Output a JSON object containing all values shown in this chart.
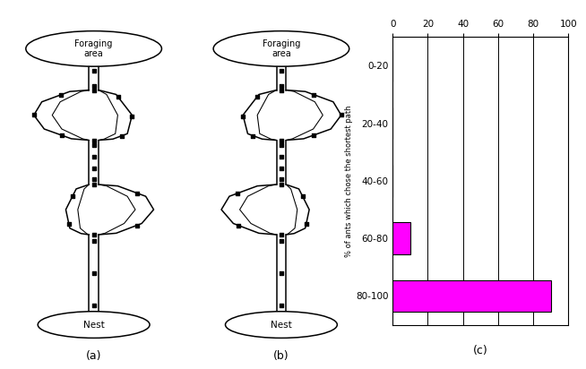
{
  "bar_categories": [
    "0-20",
    "20-40",
    "40-60",
    "60-80",
    "80-100"
  ],
  "bar_values": [
    0,
    0,
    0,
    10,
    90
  ],
  "bar_color": "#FF00FF",
  "xlim": [
    0,
    100
  ],
  "xticks": [
    0,
    20,
    40,
    60,
    80,
    100
  ],
  "ylabel": "% of ants which chose the shortest path",
  "xlabel_c": "(c)",
  "xlabel_a": "(a)",
  "xlabel_b": "(b)",
  "label_foraging": "Foraging\narea",
  "label_nest": "Nest",
  "background": "#ffffff"
}
